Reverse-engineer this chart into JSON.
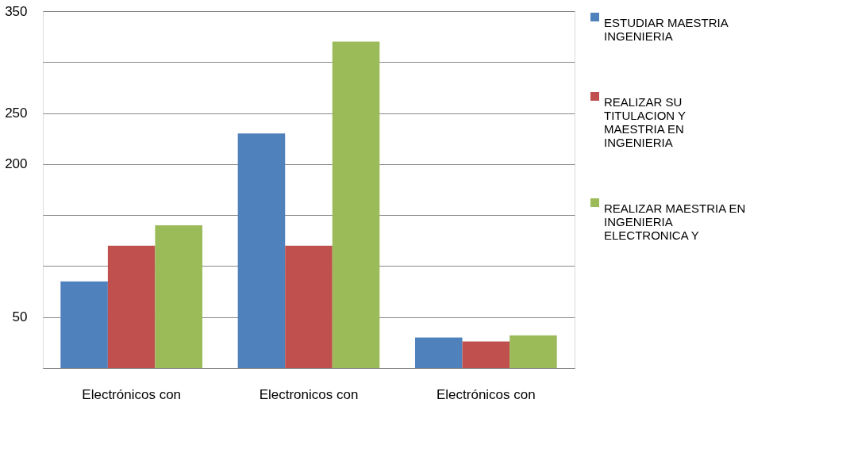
{
  "chart_data": {
    "type": "bar",
    "categories": [
      "Electrónicos con",
      "Electronicos con",
      "Electrónicos con"
    ],
    "series": [
      {
        "name": "ESTUDIAR MAESTRIA INGENIERIA",
        "color": "#4f81bd",
        "values": [
          85,
          230,
          30
        ]
      },
      {
        "name": "REALIZAR SU TITULACION Y MAESTRIA EN INGENIERIA",
        "color": "#c0504d",
        "values": [
          120,
          120,
          26
        ]
      },
      {
        "name": "REALIZAR MAESTRIA EN INGENIERIA ELECTRONICA Y",
        "color": "#9bbb59",
        "values": [
          140,
          320,
          32
        ]
      }
    ],
    "ylim": [
      0,
      350
    ],
    "yticks": [
      {
        "value": 0,
        "label": null
      },
      50,
      {
        "value": 100,
        "label": null
      },
      {
        "value": 150,
        "label": null
      },
      200,
      250,
      {
        "value": 300,
        "label": null
      },
      350
    ],
    "grid": "y",
    "legend": "right"
  }
}
